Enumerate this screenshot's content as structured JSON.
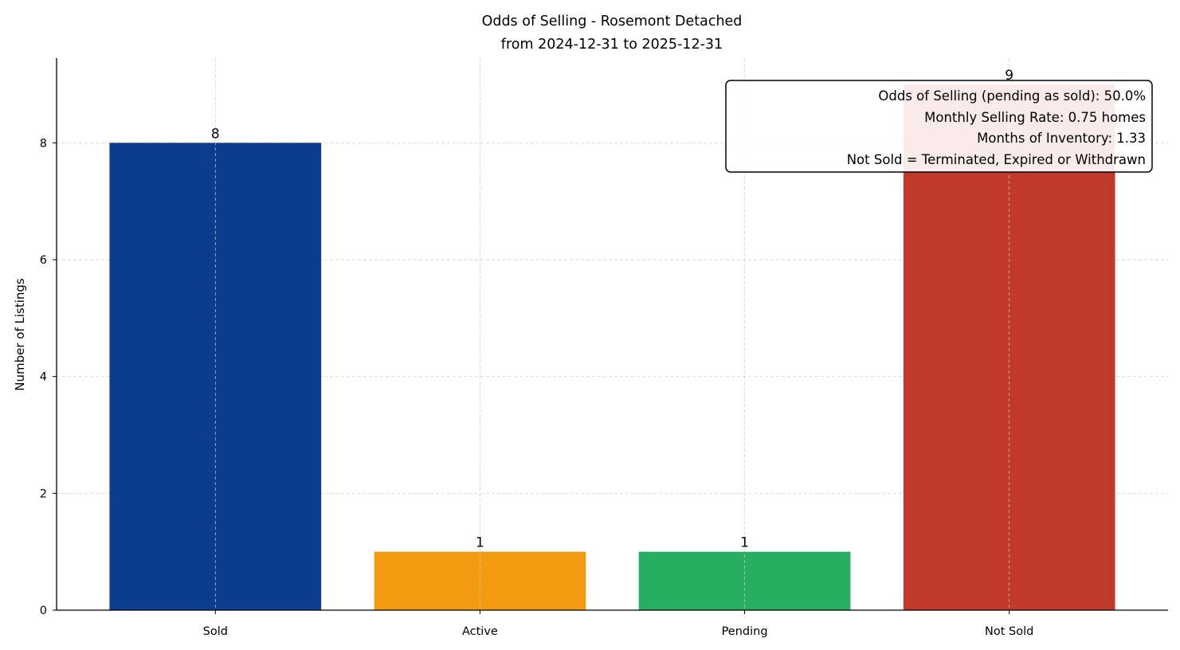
{
  "chart_data": {
    "type": "bar",
    "title": "Odds of Selling - Rosemont Detached",
    "subtitle": "from 2024-12-31 to 2025-12-31",
    "xlabel": "",
    "ylabel": "Number of Listings",
    "categories": [
      "Sold",
      "Active",
      "Pending",
      "Not Sold"
    ],
    "values": [
      8,
      1,
      1,
      9
    ],
    "data_labels": [
      "8",
      "1",
      "1",
      "9"
    ],
    "colors": [
      "#0b3d8c",
      "#f39c12",
      "#27ae60",
      "#c0392b"
    ],
    "ylim": [
      0,
      9.45
    ],
    "yticks": [
      0,
      2,
      4,
      6,
      8
    ],
    "grid": true,
    "annotation": [
      "Odds of Selling (pending as sold): 50.0%",
      "Monthly Selling Rate: 0.75 homes",
      "Months of Inventory: 1.33",
      "Not Sold = Terminated, Expired or Withdrawn"
    ],
    "annotation_placement": "top-right"
  }
}
